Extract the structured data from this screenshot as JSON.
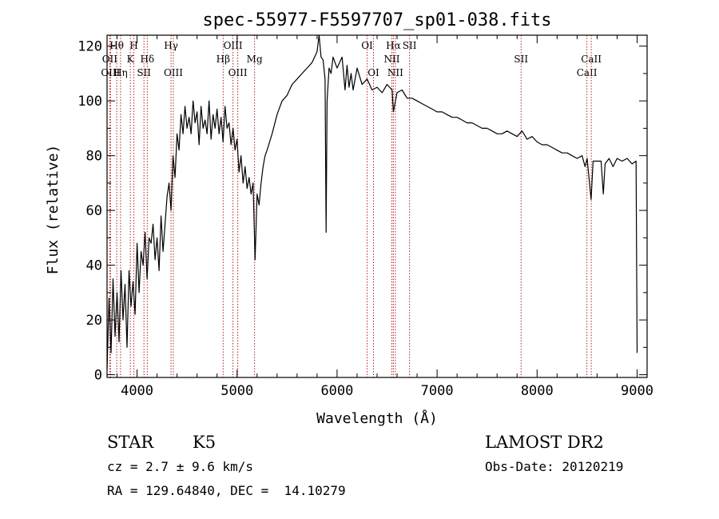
{
  "chart_data": {
    "type": "line",
    "title": "spec-55977-F5597707_sp01-038.fits",
    "xlabel": "Wavelength (Å)",
    "ylabel": "Flux (relative)",
    "xlim": [
      3700,
      9100
    ],
    "ylim": [
      -1,
      124
    ],
    "xticks": [
      4000,
      5000,
      6000,
      7000,
      8000,
      9000
    ],
    "yticks": [
      0,
      20,
      40,
      60,
      80,
      100,
      120
    ],
    "grid": false,
    "series": [
      {
        "points": [
          [
            3700,
            2
          ],
          [
            3720,
            28
          ],
          [
            3740,
            8
          ],
          [
            3760,
            35
          ],
          [
            3780,
            14
          ],
          [
            3800,
            30
          ],
          [
            3820,
            12
          ],
          [
            3840,
            38
          ],
          [
            3860,
            20
          ],
          [
            3880,
            33
          ],
          [
            3900,
            10
          ],
          [
            3920,
            38
          ],
          [
            3940,
            25
          ],
          [
            3960,
            34
          ],
          [
            3980,
            22
          ],
          [
            4000,
            48
          ],
          [
            4020,
            30
          ],
          [
            4040,
            45
          ],
          [
            4060,
            40
          ],
          [
            4080,
            52
          ],
          [
            4100,
            35
          ],
          [
            4120,
            50
          ],
          [
            4140,
            48
          ],
          [
            4160,
            55
          ],
          [
            4180,
            42
          ],
          [
            4200,
            50
          ],
          [
            4220,
            38
          ],
          [
            4240,
            58
          ],
          [
            4260,
            45
          ],
          [
            4280,
            55
          ],
          [
            4300,
            65
          ],
          [
            4320,
            70
          ],
          [
            4340,
            60
          ],
          [
            4360,
            80
          ],
          [
            4380,
            72
          ],
          [
            4400,
            88
          ],
          [
            4420,
            82
          ],
          [
            4440,
            95
          ],
          [
            4460,
            88
          ],
          [
            4480,
            98
          ],
          [
            4500,
            90
          ],
          [
            4520,
            94
          ],
          [
            4540,
            88
          ],
          [
            4560,
            100
          ],
          [
            4580,
            92
          ],
          [
            4600,
            96
          ],
          [
            4620,
            84
          ],
          [
            4640,
            98
          ],
          [
            4660,
            90
          ],
          [
            4680,
            93
          ],
          [
            4700,
            88
          ],
          [
            4720,
            100
          ],
          [
            4740,
            86
          ],
          [
            4760,
            95
          ],
          [
            4780,
            90
          ],
          [
            4800,
            97
          ],
          [
            4820,
            88
          ],
          [
            4840,
            94
          ],
          [
            4860,
            85
          ],
          [
            4880,
            98
          ],
          [
            4900,
            90
          ],
          [
            4920,
            92
          ],
          [
            4940,
            84
          ],
          [
            4960,
            90
          ],
          [
            4980,
            82
          ],
          [
            5000,
            86
          ],
          [
            5020,
            74
          ],
          [
            5040,
            80
          ],
          [
            5060,
            70
          ],
          [
            5080,
            76
          ],
          [
            5100,
            68
          ],
          [
            5120,
            72
          ],
          [
            5140,
            66
          ],
          [
            5160,
            70
          ],
          [
            5180,
            42
          ],
          [
            5200,
            66
          ],
          [
            5220,
            62
          ],
          [
            5240,
            70
          ],
          [
            5260,
            76
          ],
          [
            5280,
            80
          ],
          [
            5300,
            82
          ],
          [
            5350,
            88
          ],
          [
            5400,
            95
          ],
          [
            5450,
            100
          ],
          [
            5500,
            102
          ],
          [
            5550,
            106
          ],
          [
            5600,
            108
          ],
          [
            5650,
            110
          ],
          [
            5700,
            112
          ],
          [
            5750,
            114
          ],
          [
            5800,
            118
          ],
          [
            5820,
            124
          ],
          [
            5840,
            116
          ],
          [
            5860,
            115
          ],
          [
            5880,
            108
          ],
          [
            5890,
            52
          ],
          [
            5900,
            100
          ],
          [
            5920,
            112
          ],
          [
            5940,
            110
          ],
          [
            5960,
            116
          ],
          [
            6000,
            112
          ],
          [
            6050,
            116
          ],
          [
            6080,
            104
          ],
          [
            6100,
            113
          ],
          [
            6120,
            105
          ],
          [
            6140,
            110
          ],
          [
            6160,
            104
          ],
          [
            6200,
            112
          ],
          [
            6250,
            106
          ],
          [
            6300,
            108
          ],
          [
            6350,
            104
          ],
          [
            6400,
            105
          ],
          [
            6450,
            103
          ],
          [
            6500,
            106
          ],
          [
            6550,
            104
          ],
          [
            6563,
            96
          ],
          [
            6600,
            103
          ],
          [
            6650,
            104
          ],
          [
            6700,
            101
          ],
          [
            6750,
            101
          ],
          [
            6800,
            100
          ],
          [
            6850,
            99
          ],
          [
            6900,
            98
          ],
          [
            6950,
            97
          ],
          [
            7000,
            96
          ],
          [
            7050,
            96
          ],
          [
            7100,
            95
          ],
          [
            7150,
            94
          ],
          [
            7200,
            94
          ],
          [
            7250,
            93
          ],
          [
            7300,
            92
          ],
          [
            7350,
            92
          ],
          [
            7400,
            91
          ],
          [
            7450,
            90
          ],
          [
            7500,
            90
          ],
          [
            7550,
            89
          ],
          [
            7600,
            88
          ],
          [
            7650,
            88
          ],
          [
            7700,
            89
          ],
          [
            7750,
            88
          ],
          [
            7800,
            87
          ],
          [
            7850,
            89
          ],
          [
            7900,
            86
          ],
          [
            7950,
            87
          ],
          [
            8000,
            85
          ],
          [
            8050,
            84
          ],
          [
            8100,
            84
          ],
          [
            8150,
            83
          ],
          [
            8200,
            82
          ],
          [
            8250,
            81
          ],
          [
            8300,
            81
          ],
          [
            8350,
            80
          ],
          [
            8400,
            79
          ],
          [
            8450,
            80
          ],
          [
            8480,
            76
          ],
          [
            8500,
            79
          ],
          [
            8540,
            64
          ],
          [
            8560,
            78
          ],
          [
            8600,
            78
          ],
          [
            8640,
            78
          ],
          [
            8662,
            66
          ],
          [
            8680,
            77
          ],
          [
            8720,
            79
          ],
          [
            8760,
            76
          ],
          [
            8800,
            79
          ],
          [
            8850,
            78
          ],
          [
            8900,
            79
          ],
          [
            8950,
            77
          ],
          [
            8990,
            78
          ],
          [
            9000,
            8
          ]
        ]
      }
    ],
    "line_markers": [
      {
        "wavelength": 3727,
        "label": "OII",
        "row": 2
      },
      {
        "wavelength": 3735,
        "label": "OIII",
        "row": 3
      },
      {
        "wavelength": 3797,
        "label": "Hθ",
        "row": 1
      },
      {
        "wavelength": 3835,
        "label": "Hη",
        "row": 3
      },
      {
        "wavelength": 3933,
        "label": "K",
        "row": 2
      },
      {
        "wavelength": 3968,
        "label": "H",
        "row": 1
      },
      {
        "wavelength": 4069,
        "label": "SII",
        "row": 3
      },
      {
        "wavelength": 4102,
        "label": "Hδ",
        "row": 2
      },
      {
        "wavelength": 4340,
        "label": "Hγ",
        "row": 1
      },
      {
        "wavelength": 4363,
        "label": "OIII",
        "row": 3
      },
      {
        "wavelength": 4861,
        "label": "Hβ",
        "row": 2
      },
      {
        "wavelength": 4959,
        "label": "OIII",
        "row": 1
      },
      {
        "wavelength": 5007,
        "label": "OIII",
        "row": 3
      },
      {
        "wavelength": 5175,
        "label": "Mg",
        "row": 2
      },
      {
        "wavelength": 6300,
        "label": "OI",
        "row": 1
      },
      {
        "wavelength": 6364,
        "label": "OI",
        "row": 3
      },
      {
        "wavelength": 6548,
        "label": "NII",
        "row": 2
      },
      {
        "wavelength": 6563,
        "label": "Hα",
        "row": 1
      },
      {
        "wavelength": 6583,
        "label": "NII",
        "row": 3
      },
      {
        "wavelength": 6725,
        "label": "SII",
        "row": 1
      },
      {
        "wavelength": 7840,
        "label": "SII",
        "row": 2
      },
      {
        "wavelength": 8498,
        "label": "CaII",
        "row": 3
      },
      {
        "wavelength": 8542,
        "label": "CaII",
        "row": 2
      }
    ]
  },
  "info": {
    "object_class": "STAR",
    "subclass": "K5",
    "redshift": "cz = 2.7 ± 9.6 km/s",
    "coordinates": "RA = 129.64840, DEC =  14.10279",
    "survey": "LAMOST DR2",
    "obs_date": "Obs-Date: 20120219"
  },
  "colors": {
    "axes": "#000000",
    "spectrum": "#000000",
    "marker_line": "#b22222",
    "background": "#ffffff"
  }
}
